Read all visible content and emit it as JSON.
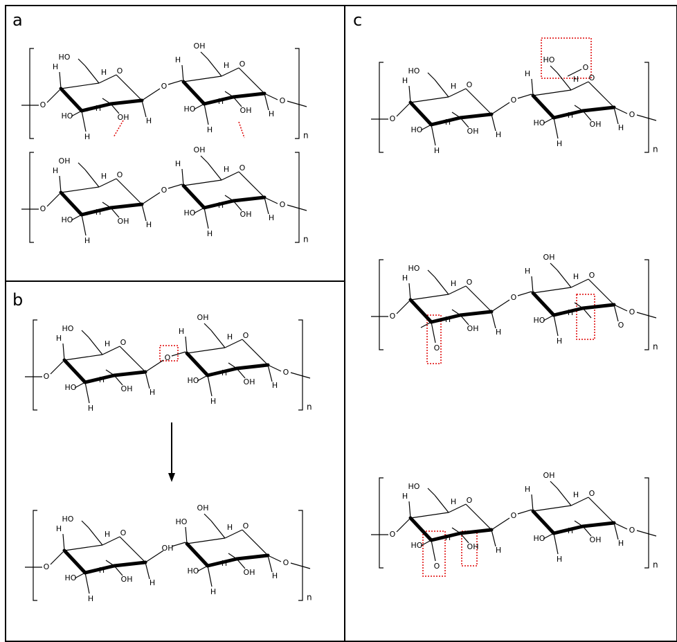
{
  "panels": [
    {
      "label": "a",
      "structures": [
        {
          "atoms": [
            "O",
            "HO",
            "H",
            "H",
            "O",
            "HO",
            "H",
            "OH",
            "H",
            "H",
            "O",
            "OH",
            "H",
            "H",
            "O",
            "HO",
            "H",
            "OH",
            "H",
            "H",
            "O"
          ],
          "n": "n"
        },
        {
          "atoms": [
            "O",
            "OH",
            "H",
            "H",
            "O",
            "HO",
            "H",
            "OH",
            "H",
            "H",
            "O",
            "OH",
            "H",
            "H",
            "O",
            "HO",
            "H",
            "OH",
            "H",
            "H",
            "O"
          ],
          "n": "n"
        }
      ]
    },
    {
      "label": "b",
      "structures": [
        {
          "atoms": [
            "O",
            "HO",
            "H",
            "H",
            "O",
            "HO",
            "H",
            "OH",
            "H",
            "H",
            "O",
            "OH",
            "H",
            "H",
            "O",
            "HO",
            "H",
            "OH",
            "H",
            "H",
            "O"
          ],
          "n": "n"
        },
        {
          "atoms": [
            "O",
            "HO",
            "H",
            "H",
            "O",
            "HO",
            "H",
            "OH",
            "H",
            "H",
            "OH",
            "OH",
            "HO",
            "H",
            "O",
            "HO",
            "H",
            "OH",
            "H",
            "H",
            "O"
          ],
          "n": "n"
        }
      ]
    },
    {
      "label": "c",
      "structures": [
        {
          "atoms": [
            "O",
            "HO",
            "H",
            "H",
            "O",
            "HO",
            "H",
            "OH",
            "H",
            "H",
            "O",
            "HO",
            "H",
            "H",
            "O",
            "HO",
            "H",
            "OH",
            "H",
            "H",
            "O"
          ],
          "extra": [
            "O"
          ],
          "n": "n"
        },
        {
          "atoms": [
            "O",
            "HO",
            "H",
            "H",
            "O",
            null,
            "H",
            "OH",
            "O",
            "H",
            "O",
            "OH",
            "H",
            "H",
            "O",
            "HO",
            "H",
            null,
            "H",
            "O",
            "O"
          ],
          "n": "n"
        },
        {
          "atoms": [
            "O",
            "HO",
            "H",
            "H",
            "O",
            "HO",
            "H",
            "OH",
            "O",
            "H",
            "O",
            "OH",
            "H",
            "H",
            "O",
            "HO",
            "H",
            "OH",
            "H",
            "H",
            "O"
          ],
          "n": "n"
        }
      ]
    }
  ]
}
